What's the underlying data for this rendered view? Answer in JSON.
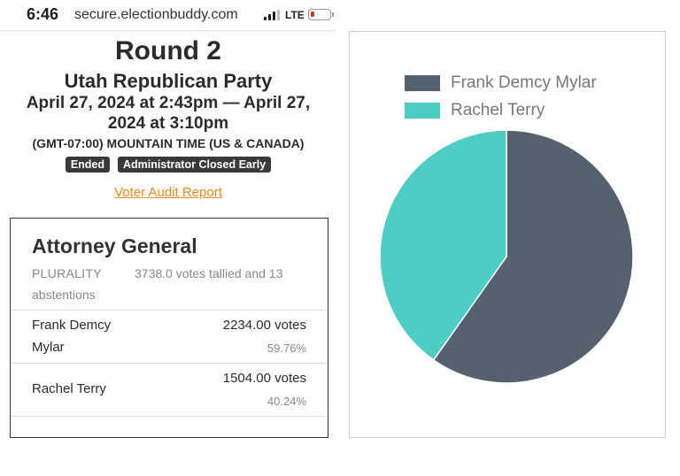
{
  "status_bar": {
    "time": "6:46",
    "url": "secure.electionbuddy.com",
    "network": "LTE"
  },
  "header": {
    "round": "Round 2",
    "organization": "Utah Republican Party",
    "dates": "April 27, 2024 at 2:43pm — April 27, 2024 at 3:10pm",
    "timezone": "(GMT-07:00) MOUNTAIN TIME (US & CANADA)",
    "badges": [
      "Ended",
      "Administrator Closed Early"
    ],
    "audit_link": "Voter Audit Report"
  },
  "result": {
    "office": "Attorney General",
    "method": "PLURALITY",
    "tally": "3738.0 votes tallied and 13",
    "tally_cont": "abstentions",
    "candidates": [
      {
        "name_line1": "Frank Demcy",
        "name_line2": "Mylar",
        "votes": "2234.00 votes",
        "percent": "59.76%"
      },
      {
        "name_line1": "Rachel Terry",
        "votes": "1504.00 votes",
        "percent": "40.24%"
      }
    ]
  },
  "chart_data": {
    "type": "pie",
    "categories": [
      "Frank Demcy Mylar",
      "Rachel Terry"
    ],
    "values": [
      2234,
      1504
    ],
    "colors": [
      "#55616e",
      "#4ecdc4"
    ],
    "legend_position": "top"
  }
}
